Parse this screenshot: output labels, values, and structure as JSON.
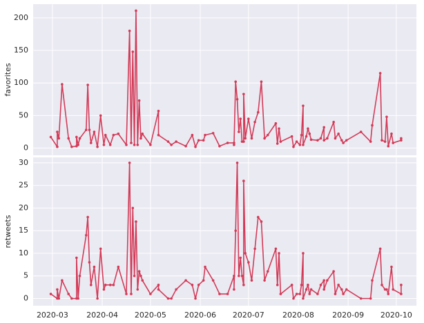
{
  "chart_data": [
    {
      "type": "line",
      "ylabel": "favorites",
      "color": "#d33a57",
      "x": [
        -1,
        3,
        3,
        4,
        6,
        10,
        12,
        15,
        15,
        16,
        17,
        21,
        22,
        23,
        24,
        26,
        28,
        30,
        32,
        33,
        36,
        38,
        41,
        46,
        48,
        49,
        50,
        51,
        52,
        53,
        54,
        55,
        56,
        61,
        66,
        66,
        72,
        74,
        77,
        83,
        87,
        89,
        91,
        94,
        95,
        100,
        104,
        109,
        113,
        113,
        114,
        115,
        116,
        117,
        118,
        119,
        119,
        120,
        122,
        124,
        126,
        128,
        130,
        132,
        134,
        139,
        140,
        141,
        142,
        149,
        150,
        152,
        154,
        155,
        156,
        156,
        158,
        159,
        160,
        161,
        165,
        167,
        169,
        169,
        171,
        175,
        176,
        178,
        180,
        181,
        183,
        192,
        198,
        199,
        204,
        205,
        207,
        208,
        209,
        211,
        212,
        217,
        217
      ],
      "values": [
        17,
        2,
        25,
        15,
        98,
        15,
        2,
        3,
        17,
        5,
        15,
        28,
        97,
        28,
        8,
        25,
        2,
        50,
        5,
        20,
        5,
        20,
        22,
        5,
        180,
        8,
        148,
        5,
        211,
        5,
        73,
        15,
        22,
        5,
        57,
        20,
        10,
        5,
        10,
        3,
        20,
        2,
        12,
        12,
        20,
        23,
        3,
        8,
        8,
        5,
        102,
        75,
        25,
        45,
        10,
        10,
        83,
        15,
        45,
        15,
        40,
        55,
        102,
        15,
        20,
        38,
        7,
        30,
        10,
        18,
        2,
        10,
        5,
        20,
        65,
        5,
        18,
        30,
        22,
        13,
        12,
        15,
        32,
        12,
        15,
        40,
        15,
        22,
        12,
        8,
        12,
        25,
        10,
        35,
        115,
        12,
        10,
        48,
        3,
        22,
        8,
        12,
        15
      ],
      "xlim": [
        -12,
        226.5
      ],
      "xticks": [
        0,
        31,
        61,
        92,
        122,
        153,
        184,
        214
      ],
      "ylim": [
        -11,
        221
      ],
      "yticks": [
        0,
        50,
        100,
        150,
        200
      ],
      "grid": true
    },
    {
      "type": "line",
      "ylabel": "retweets",
      "color": "#d33a57",
      "x": [
        -1,
        3,
        3,
        4,
        6,
        10,
        12,
        15,
        15,
        16,
        17,
        21,
        22,
        23,
        24,
        26,
        28,
        30,
        32,
        33,
        36,
        38,
        41,
        46,
        48,
        49,
        50,
        51,
        52,
        53,
        54,
        55,
        56,
        61,
        66,
        66,
        72,
        74,
        77,
        83,
        87,
        89,
        91,
        94,
        95,
        100,
        104,
        109,
        113,
        113,
        114,
        115,
        116,
        117,
        118,
        119,
        119,
        120,
        122,
        124,
        126,
        128,
        130,
        132,
        134,
        139,
        140,
        141,
        142,
        149,
        150,
        152,
        154,
        155,
        156,
        156,
        158,
        159,
        160,
        161,
        165,
        167,
        169,
        169,
        171,
        175,
        176,
        178,
        180,
        181,
        183,
        192,
        198,
        199,
        204,
        205,
        207,
        208,
        209,
        211,
        212,
        217,
        217
      ],
      "values": [
        1,
        0,
        2,
        0,
        4,
        1,
        0,
        0,
        9,
        0,
        5,
        14,
        18,
        8,
        3,
        7,
        0,
        11,
        2,
        3,
        3,
        3,
        7,
        1,
        30,
        1,
        20,
        5,
        17,
        2,
        6,
        5,
        4,
        1,
        3,
        2,
        0,
        0,
        2,
        4,
        3,
        0,
        3,
        4,
        7,
        4,
        1,
        1,
        5,
        2,
        15,
        30,
        5,
        9,
        5,
        3,
        26,
        10,
        8,
        4,
        11,
        18,
        17,
        4,
        6,
        11,
        3,
        10,
        1,
        3,
        0,
        1,
        1,
        3,
        10,
        0,
        2,
        3,
        1,
        2,
        1,
        3,
        4,
        2,
        4,
        6,
        1,
        3,
        2,
        1,
        2,
        0,
        0,
        4,
        11,
        3,
        2,
        2,
        1,
        7,
        2,
        1,
        3
      ],
      "xlim": [
        -12,
        226.5
      ],
      "xticks": [
        {
          "value": 0,
          "label": "2020-03"
        },
        {
          "value": 31,
          "label": "2020-04"
        },
        {
          "value": 61,
          "label": "2020-05"
        },
        {
          "value": 92,
          "label": "2020-06"
        },
        {
          "value": 122,
          "label": "2020-07"
        },
        {
          "value": 153,
          "label": "2020-08"
        },
        {
          "value": 184,
          "label": "2020-09"
        },
        {
          "value": 214,
          "label": "2020-10"
        }
      ],
      "ylim": [
        -1.6,
        31.2
      ],
      "yticks": [
        0,
        5,
        10,
        15,
        20,
        25,
        30
      ],
      "grid": true
    }
  ]
}
